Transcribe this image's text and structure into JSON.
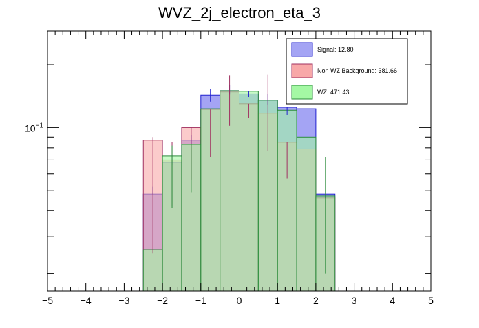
{
  "chart_data": {
    "type": "histogram-overlay",
    "title": "WVZ_2j_electron_eta_3",
    "xlabel": "",
    "ylabel": "",
    "xlim": [
      -5,
      5
    ],
    "y_scale": "log",
    "ylim": [
      0.0165,
      0.29
    ],
    "x_ticks": [
      -5,
      -4,
      -3,
      -2,
      -1,
      0,
      1,
      2,
      3,
      4,
      5
    ],
    "x_tick_labels": [
      "−5",
      "−4",
      "−3",
      "−2",
      "−1",
      "0",
      "1",
      "2",
      "3",
      "4",
      "5"
    ],
    "y_tick_label": {
      "base": "10",
      "exponent": "−1"
    },
    "bin_edges": [
      -2.5,
      -2.0,
      -1.5,
      -1.0,
      -0.5,
      0.0,
      0.5,
      1.0,
      1.5,
      2.0,
      2.5
    ],
    "series": [
      {
        "name": "Signal",
        "legend_label": "Signal: 12.80",
        "fill": "#a4a4f4",
        "edge": "#2020d0",
        "values": [
          0.048,
          0.068,
          0.087,
          0.143,
          0.15,
          0.145,
          0.135,
          0.125,
          0.123,
          0.048
        ],
        "errors_low": [
          0.0,
          0.002,
          0.004,
          0.01,
          0.006,
          0.005,
          0.006,
          0.01,
          0.0,
          0.002
        ],
        "errors_high": [
          0.004,
          0.006,
          0.005,
          0.01,
          0.01,
          0.004,
          0.01,
          0.0,
          0.0,
          0.0
        ]
      },
      {
        "name": "Non WZ Background",
        "legend_label": "Non WZ Background: 381.66",
        "fill": "#f8a8a8",
        "edge": "#a03060",
        "values": [
          0.087,
          0.07,
          0.1,
          0.122,
          0.148,
          0.13,
          0.117,
          0.085,
          0.079,
          0.046
        ],
        "errors_low": [
          0.062,
          0.028,
          0.044,
          0.05,
          0.046,
          0.019,
          0.04,
          0.028,
          0.0,
          0.0
        ],
        "errors_high": [
          0.003,
          0.015,
          0.0,
          0.0,
          0.03,
          0.0,
          0.062,
          0.0,
          0.0,
          0.0
        ]
      },
      {
        "name": "WZ",
        "legend_label": "WZ: 471.43",
        "fill": "#a4f8a4",
        "edge": "#2c8c3c",
        "values": [
          0.026,
          0.073,
          0.083,
          0.123,
          0.15,
          0.149,
          0.135,
          0.121,
          0.09,
          0.047
        ],
        "errors_low": [
          0.0,
          0.032,
          0.034,
          0.0,
          0.0,
          0.0,
          0.0,
          0.0,
          0.0,
          0.027
        ],
        "errors_high": [
          0.0,
          0.009,
          0.0,
          0.0,
          0.0,
          0.0,
          0.0,
          0.0,
          0.0,
          0.025
        ]
      }
    ],
    "legend_position": "top-right"
  }
}
